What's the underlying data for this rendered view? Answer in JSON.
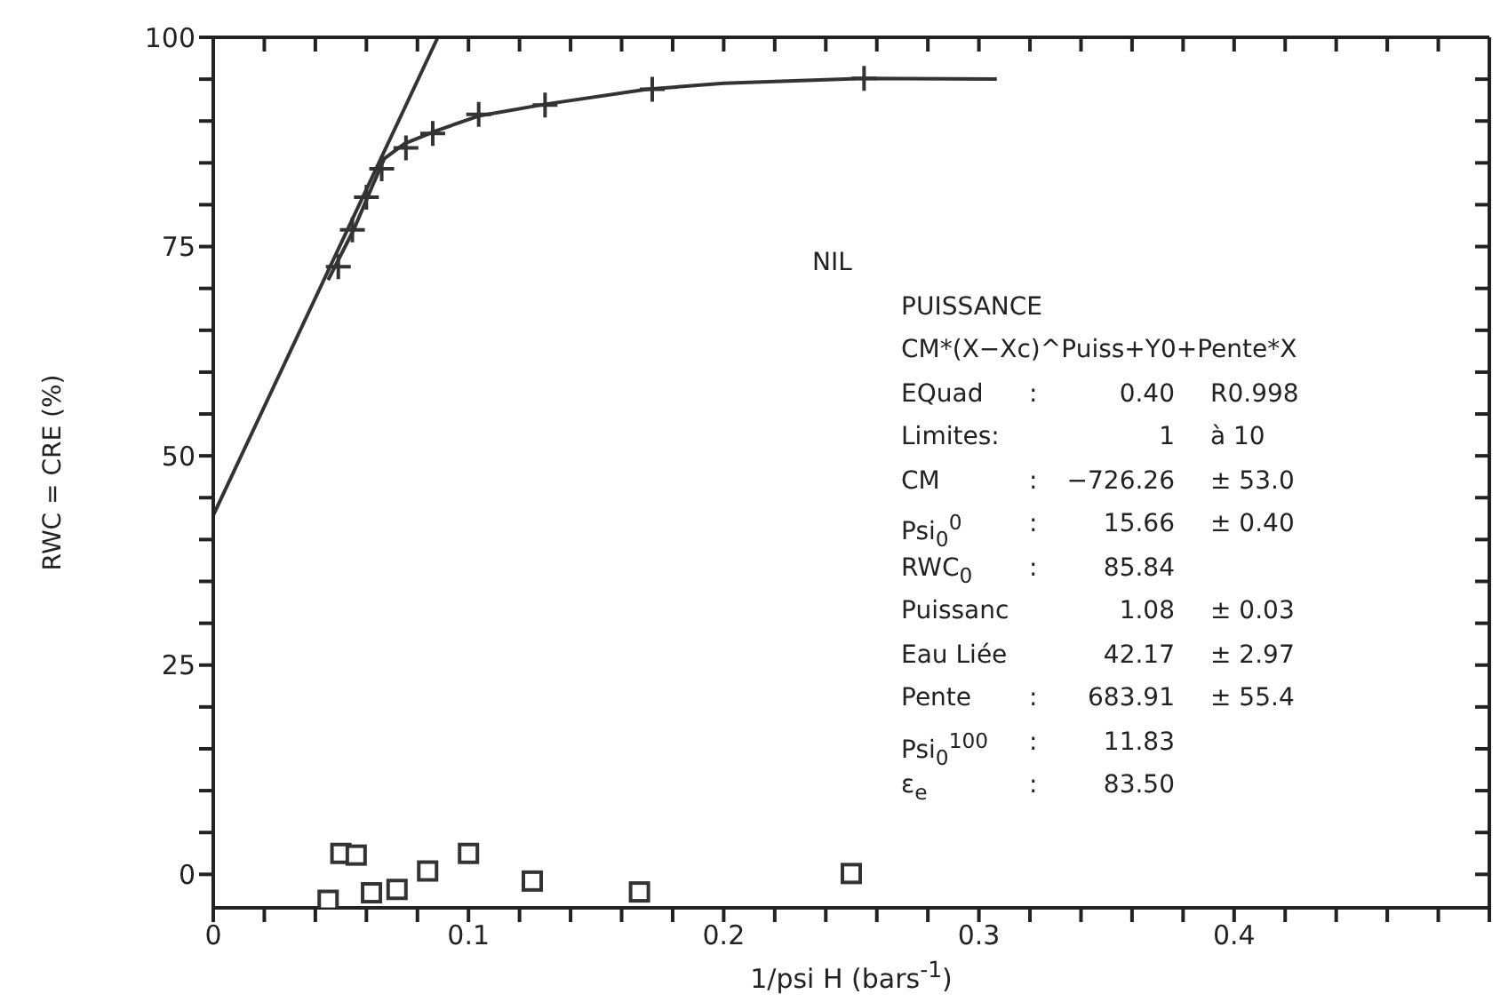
{
  "chart_data": {
    "type": "scatter",
    "xlabel": "1/psi H (bars$^{-1}$)",
    "ylabel": "RWC = CRE (%)",
    "xlim": [
      0,
      0.5
    ],
    "ylim": [
      -4,
      100
    ],
    "xticks": [
      0,
      {
        "value": 0.02,
        "label": null
      },
      {
        "value": 0.04,
        "label": null
      },
      {
        "value": 0.06,
        "label": null
      },
      {
        "value": 0.08,
        "label": null
      },
      {
        "value": 0.1,
        "label": "0.1"
      },
      {
        "value": 0.12,
        "label": null
      },
      {
        "value": 0.14,
        "label": null
      },
      {
        "value": 0.16,
        "label": null
      },
      {
        "value": 0.18,
        "label": null
      },
      {
        "value": 0.2,
        "label": "0.2"
      },
      {
        "value": 0.22,
        "label": null
      },
      {
        "value": 0.24,
        "label": null
      },
      {
        "value": 0.26,
        "label": null
      },
      {
        "value": 0.28,
        "label": null
      },
      {
        "value": 0.3,
        "label": "0.3"
      },
      {
        "value": 0.32,
        "label": null
      },
      {
        "value": 0.34,
        "label": null
      },
      {
        "value": 0.36,
        "label": null
      },
      {
        "value": 0.38,
        "label": null
      },
      {
        "value": 0.4,
        "label": "0.4"
      },
      {
        "value": 0.42,
        "label": null
      },
      {
        "value": 0.44,
        "label": null
      },
      {
        "value": 0.46,
        "label": null
      },
      {
        "value": 0.48,
        "label": null
      },
      {
        "value": 0.5,
        "label": null
      }
    ],
    "yticks": [
      0,
      {
        "value": 5,
        "label": null
      },
      {
        "value": 10,
        "label": null
      },
      {
        "value": 15,
        "label": null
      },
      {
        "value": 20,
        "label": null
      },
      25,
      {
        "value": 30,
        "label": null
      },
      {
        "value": 35,
        "label": null
      },
      {
        "value": 40,
        "label": null
      },
      {
        "value": 45,
        "label": null
      },
      50,
      {
        "value": 55,
        "label": null
      },
      {
        "value": 60,
        "label": null
      },
      {
        "value": 65,
        "label": null
      },
      {
        "value": 70,
        "label": null
      },
      75,
      {
        "value": 80,
        "label": null
      },
      {
        "value": 85,
        "label": null
      },
      {
        "value": 90,
        "label": null
      },
      {
        "value": 95,
        "label": null
      },
      100
    ],
    "series": [
      {
        "type": "line",
        "marker": "none",
        "color": "#333333",
        "x": [
          0,
          0.088
        ],
        "values": [
          42.9,
          100
        ]
      },
      {
        "type": "line",
        "marker": "none",
        "color": "#333333",
        "x": [
          0.045,
          0.055,
          0.062,
          0.067,
          0.075,
          0.087,
          0.104,
          0.13,
          0.17,
          0.2,
          0.255,
          0.307
        ],
        "values": [
          71,
          77,
          82,
          85.5,
          87.3,
          88.8,
          90.6,
          92,
          93.8,
          94.5,
          95.1,
          95
        ]
      },
      {
        "marker": "cross",
        "color": "#333333",
        "x": [
          0.049,
          0.0545,
          0.06,
          0.066,
          0.0755,
          0.086,
          0.104,
          0.13,
          0.172,
          0.255
        ],
        "values": [
          72.6,
          77,
          80.9,
          84.3,
          86.8,
          88.5,
          90.8,
          91.9,
          93.8,
          95.1
        ]
      },
      {
        "marker": "square",
        "color": "#333333",
        "x": [
          0.045,
          0.05,
          0.056,
          0.062,
          0.072,
          0.084,
          0.1,
          0.125,
          0.167,
          0.25
        ],
        "values": [
          -3.1,
          2.5,
          2.3,
          -2.2,
          -1.8,
          0.4,
          2.5,
          -0.8,
          -2.1,
          0.1
        ]
      }
    ],
    "annotations": [
      "NIL",
      "PUISSANCE",
      "CM*(X−Xc)^Puiss+Y0+Pente*X",
      "EQuad\t:\t0.40\tR0.998",
      "Limites:\t\t1\tà  10",
      "CM\t:\t−726.26\t± 53.0",
      "Psi$_{0}$$^{0}$\t:\t15.66\t± 0.40",
      "RWC$_{0}$\t:\t85.84",
      "Puissanc\t\t1.08\t± 0.03",
      "Eau Liée\t\t42.17\t± 2.97",
      "Pente\t:\t683.91\t± 55.4",
      "Psi$_{0}$$^{100}$\t:\t11.83",
      "ε$_{e}$\t:\t83.50"
    ]
  }
}
